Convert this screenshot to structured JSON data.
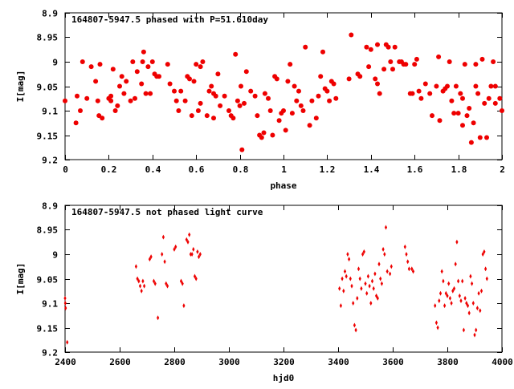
{
  "colors": {
    "points": "#ee0000",
    "axes": "#000000",
    "background": "#ffffff"
  },
  "chart_data": [
    {
      "type": "scatter",
      "title": "164807-5947.5 phased with P=51.610day",
      "xlabel": "phase",
      "ylabel": "I[mag]",
      "xlim": [
        0,
        2
      ],
      "ylim": [
        9.2,
        8.9
      ],
      "y_inverted": true,
      "grid": false,
      "marker": "filled-circle",
      "xticks": [
        0,
        0.2,
        0.4,
        0.6,
        0.8,
        1,
        1.2,
        1.4,
        1.6,
        1.8,
        2
      ],
      "xtick_labels": [
        "0",
        "0.2",
        "0.4",
        "0.6",
        "0.8",
        "1",
        "1.2",
        "1.4",
        "1.6",
        "1.8",
        "2"
      ],
      "yticks": [
        8.9,
        8.95,
        9,
        9.05,
        9.1,
        9.15,
        9.2
      ],
      "ytick_labels": [
        "8.9",
        "8.95",
        "9",
        "9.05",
        "9.1",
        "9.15",
        "9.2"
      ],
      "points": [
        [
          0.0,
          9.08
        ],
        [
          0.05,
          9.125
        ],
        [
          0.055,
          9.07
        ],
        [
          0.07,
          9.1
        ],
        [
          0.08,
          9.0
        ],
        [
          0.1,
          9.075
        ],
        [
          0.12,
          9.01
        ],
        [
          0.14,
          9.04
        ],
        [
          0.15,
          9.08
        ],
        [
          0.155,
          9.11
        ],
        [
          0.16,
          9.005
        ],
        [
          0.17,
          9.115
        ],
        [
          0.2,
          9.075
        ],
        [
          0.21,
          9.08
        ],
        [
          0.21,
          9.07
        ],
        [
          0.22,
          9.015
        ],
        [
          0.23,
          9.1
        ],
        [
          0.24,
          9.09
        ],
        [
          0.25,
          9.05
        ],
        [
          0.26,
          9.03
        ],
        [
          0.27,
          9.065
        ],
        [
          0.28,
          9.04
        ],
        [
          0.3,
          9.08
        ],
        [
          0.31,
          9.0
        ],
        [
          0.32,
          9.075
        ],
        [
          0.33,
          9.02
        ],
        [
          0.35,
          9.045
        ],
        [
          0.355,
          9.0
        ],
        [
          0.36,
          8.98
        ],
        [
          0.37,
          9.065
        ],
        [
          0.38,
          9.01
        ],
        [
          0.39,
          9.065
        ],
        [
          0.4,
          9.0
        ],
        [
          0.41,
          9.025
        ],
        [
          0.42,
          9.03
        ],
        [
          0.43,
          9.03
        ],
        [
          0.47,
          9.005
        ],
        [
          0.48,
          9.045
        ],
        [
          0.5,
          9.06
        ],
        [
          0.51,
          9.08
        ],
        [
          0.52,
          9.1
        ],
        [
          0.53,
          9.06
        ],
        [
          0.55,
          9.08
        ],
        [
          0.56,
          9.03
        ],
        [
          0.57,
          9.035
        ],
        [
          0.58,
          9.11
        ],
        [
          0.59,
          9.04
        ],
        [
          0.6,
          9.005
        ],
        [
          0.61,
          9.1
        ],
        [
          0.62,
          9.085
        ],
        [
          0.62,
          9.01
        ],
        [
          0.63,
          9.0
        ],
        [
          0.65,
          9.11
        ],
        [
          0.66,
          9.06
        ],
        [
          0.67,
          9.05
        ],
        [
          0.68,
          9.065
        ],
        [
          0.68,
          9.115
        ],
        [
          0.69,
          9.07
        ],
        [
          0.7,
          9.025
        ],
        [
          0.71,
          9.09
        ],
        [
          0.73,
          9.07
        ],
        [
          0.75,
          9.1
        ],
        [
          0.76,
          9.11
        ],
        [
          0.77,
          9.115
        ],
        [
          0.78,
          8.985
        ],
        [
          0.79,
          9.08
        ],
        [
          0.8,
          9.09
        ],
        [
          0.805,
          9.05
        ],
        [
          0.81,
          9.18
        ],
        [
          0.82,
          9.085
        ],
        [
          0.83,
          9.02
        ],
        [
          0.85,
          9.06
        ],
        [
          0.87,
          9.07
        ],
        [
          0.88,
          9.11
        ],
        [
          0.89,
          9.15
        ],
        [
          0.9,
          9.155
        ],
        [
          0.91,
          9.145
        ],
        [
          0.915,
          9.065
        ],
        [
          0.93,
          9.075
        ],
        [
          0.94,
          9.1
        ],
        [
          0.95,
          9.15
        ],
        [
          0.96,
          9.03
        ],
        [
          0.97,
          9.035
        ],
        [
          0.98,
          9.12
        ],
        [
          0.99,
          9.105
        ],
        [
          1.0,
          9.1
        ],
        [
          1.01,
          9.14
        ],
        [
          1.02,
          9.04
        ],
        [
          1.03,
          9.005
        ],
        [
          1.04,
          9.105
        ],
        [
          1.05,
          9.05
        ],
        [
          1.06,
          9.08
        ],
        [
          1.07,
          9.06
        ],
        [
          1.08,
          9.09
        ],
        [
          1.09,
          9.1
        ],
        [
          1.1,
          8.97
        ],
        [
          1.12,
          9.13
        ],
        [
          1.13,
          9.08
        ],
        [
          1.15,
          9.115
        ],
        [
          1.16,
          9.07
        ],
        [
          1.17,
          9.03
        ],
        [
          1.18,
          8.98
        ],
        [
          1.19,
          9.055
        ],
        [
          1.2,
          9.06
        ],
        [
          1.21,
          9.08
        ],
        [
          1.22,
          9.04
        ],
        [
          1.23,
          9.045
        ],
        [
          1.24,
          9.075
        ],
        [
          1.3,
          9.035
        ],
        [
          1.31,
          8.945
        ],
        [
          1.34,
          9.025
        ],
        [
          1.35,
          9.03
        ],
        [
          1.38,
          8.97
        ],
        [
          1.39,
          9.01
        ],
        [
          1.4,
          8.975
        ],
        [
          1.42,
          9.035
        ],
        [
          1.43,
          8.965
        ],
        [
          1.43,
          9.045
        ],
        [
          1.44,
          9.065
        ],
        [
          1.46,
          9.015
        ],
        [
          1.47,
          8.965
        ],
        [
          1.48,
          8.97
        ],
        [
          1.49,
          9.0
        ],
        [
          1.5,
          9.015
        ],
        [
          1.51,
          8.97
        ],
        [
          1.53,
          9.0
        ],
        [
          1.54,
          9.0
        ],
        [
          1.55,
          9.005
        ],
        [
          1.56,
          9.005
        ],
        [
          1.58,
          9.065
        ],
        [
          1.59,
          9.065
        ],
        [
          1.6,
          9.005
        ],
        [
          1.61,
          8.995
        ],
        [
          1.62,
          9.06
        ],
        [
          1.63,
          9.075
        ],
        [
          1.65,
          9.045
        ],
        [
          1.67,
          9.065
        ],
        [
          1.68,
          9.11
        ],
        [
          1.7,
          9.05
        ],
        [
          1.71,
          8.99
        ],
        [
          1.715,
          9.12
        ],
        [
          1.73,
          9.06
        ],
        [
          1.74,
          9.055
        ],
        [
          1.75,
          9.05
        ],
        [
          1.76,
          9.0
        ],
        [
          1.77,
          9.08
        ],
        [
          1.78,
          9.105
        ],
        [
          1.79,
          9.05
        ],
        [
          1.8,
          9.105
        ],
        [
          1.81,
          9.065
        ],
        [
          1.82,
          9.075
        ],
        [
          1.82,
          9.13
        ],
        [
          1.83,
          9.005
        ],
        [
          1.84,
          9.11
        ],
        [
          1.85,
          9.095
        ],
        [
          1.86,
          9.165
        ],
        [
          1.87,
          9.125
        ],
        [
          1.88,
          9.05
        ],
        [
          1.88,
          9.005
        ],
        [
          1.89,
          9.065
        ],
        [
          1.9,
          9.155
        ],
        [
          1.91,
          8.995
        ],
        [
          1.92,
          9.085
        ],
        [
          1.93,
          9.155
        ],
        [
          1.94,
          9.075
        ],
        [
          1.95,
          9.05
        ],
        [
          1.96,
          9.0
        ],
        [
          1.97,
          9.085
        ],
        [
          1.97,
          9.05
        ],
        [
          1.99,
          9.075
        ],
        [
          2.0,
          9.1
        ]
      ]
    },
    {
      "type": "scatter",
      "title": "164807-5947.5 not phased light curve",
      "xlabel": "hjd0",
      "ylabel": "I[mag]",
      "xlim": [
        2400,
        4000
      ],
      "ylim": [
        9.2,
        8.9
      ],
      "y_inverted": true,
      "grid": false,
      "marker": "small-diamond",
      "xticks": [
        2400,
        2600,
        2800,
        3000,
        3200,
        3400,
        3600,
        3800,
        4000
      ],
      "xtick_labels": [
        "2400",
        "2600",
        "2800",
        "3000",
        "3200",
        "3400",
        "3600",
        "3800",
        "4000"
      ],
      "yticks": [
        8.9,
        8.95,
        9,
        9.05,
        9.1,
        9.15,
        9.2
      ],
      "ytick_labels": [
        "8.9",
        "8.95",
        "9",
        "9.05",
        "9.1",
        "9.15",
        "9.2"
      ],
      "points": [
        [
          2400,
          9.09
        ],
        [
          2401,
          9.1
        ],
        [
          2402,
          9.11
        ],
        [
          2408,
          9.18
        ],
        [
          2660,
          9.025
        ],
        [
          2665,
          9.05
        ],
        [
          2670,
          9.055
        ],
        [
          2675,
          9.065
        ],
        [
          2680,
          9.075
        ],
        [
          2685,
          9.055
        ],
        [
          2690,
          9.065
        ],
        [
          2710,
          9.01
        ],
        [
          2715,
          9.005
        ],
        [
          2725,
          9.055
        ],
        [
          2730,
          9.06
        ],
        [
          2740,
          9.13
        ],
        [
          2755,
          9.0
        ],
        [
          2760,
          8.965
        ],
        [
          2765,
          9.015
        ],
        [
          2770,
          9.06
        ],
        [
          2775,
          9.065
        ],
        [
          2800,
          8.99
        ],
        [
          2805,
          8.985
        ],
        [
          2825,
          9.055
        ],
        [
          2830,
          9.06
        ],
        [
          2835,
          9.105
        ],
        [
          2845,
          8.97
        ],
        [
          2850,
          8.975
        ],
        [
          2855,
          8.96
        ],
        [
          2860,
          9.0
        ],
        [
          2865,
          9.0
        ],
        [
          2870,
          8.99
        ],
        [
          2875,
          9.045
        ],
        [
          2880,
          9.05
        ],
        [
          2885,
          8.995
        ],
        [
          2890,
          9.005
        ],
        [
          2895,
          9.0
        ],
        [
          3405,
          9.07
        ],
        [
          3410,
          9.105
        ],
        [
          3415,
          9.05
        ],
        [
          3420,
          9.075
        ],
        [
          3425,
          9.035
        ],
        [
          3430,
          9.045
        ],
        [
          3435,
          9.0
        ],
        [
          3440,
          9.01
        ],
        [
          3445,
          9.05
        ],
        [
          3450,
          9.065
        ],
        [
          3455,
          9.1
        ],
        [
          3460,
          9.145
        ],
        [
          3465,
          9.155
        ],
        [
          3470,
          9.09
        ],
        [
          3475,
          9.03
        ],
        [
          3480,
          9.05
        ],
        [
          3485,
          9.07
        ],
        [
          3490,
          9.0
        ],
        [
          3495,
          8.995
        ],
        [
          3500,
          9.06
        ],
        [
          3505,
          9.08
        ],
        [
          3510,
          9.045
        ],
        [
          3515,
          9.065
        ],
        [
          3520,
          9.1
        ],
        [
          3525,
          9.055
        ],
        [
          3530,
          9.07
        ],
        [
          3535,
          9.04
        ],
        [
          3540,
          9.085
        ],
        [
          3545,
          9.09
        ],
        [
          3550,
          9.02
        ],
        [
          3555,
          9.05
        ],
        [
          3560,
          9.06
        ],
        [
          3565,
          8.99
        ],
        [
          3570,
          9.0
        ],
        [
          3575,
          8.945
        ],
        [
          3580,
          9.035
        ],
        [
          3590,
          9.04
        ],
        [
          3595,
          9.025
        ],
        [
          3645,
          8.985
        ],
        [
          3650,
          9.0
        ],
        [
          3655,
          9.015
        ],
        [
          3660,
          9.03
        ],
        [
          3670,
          9.03
        ],
        [
          3675,
          9.035
        ],
        [
          3755,
          9.105
        ],
        [
          3760,
          9.14
        ],
        [
          3765,
          9.15
        ],
        [
          3770,
          9.095
        ],
        [
          3775,
          9.08
        ],
        [
          3780,
          9.035
        ],
        [
          3785,
          9.055
        ],
        [
          3790,
          9.105
        ],
        [
          3795,
          9.08
        ],
        [
          3800,
          9.085
        ],
        [
          3805,
          9.06
        ],
        [
          3810,
          9.09
        ],
        [
          3815,
          9.1
        ],
        [
          3820,
          9.075
        ],
        [
          3825,
          9.07
        ],
        [
          3830,
          9.02
        ],
        [
          3835,
          8.975
        ],
        [
          3840,
          9.055
        ],
        [
          3845,
          9.085
        ],
        [
          3850,
          9.095
        ],
        [
          3855,
          9.055
        ],
        [
          3860,
          9.155
        ],
        [
          3865,
          9.09
        ],
        [
          3870,
          9.1
        ],
        [
          3875,
          9.105
        ],
        [
          3880,
          9.12
        ],
        [
          3885,
          9.045
        ],
        [
          3890,
          9.06
        ],
        [
          3895,
          9.1
        ],
        [
          3900,
          9.165
        ],
        [
          3905,
          9.155
        ],
        [
          3910,
          9.11
        ],
        [
          3915,
          9.08
        ],
        [
          3920,
          9.115
        ],
        [
          3925,
          9.075
        ],
        [
          3930,
          9.0
        ],
        [
          3935,
          8.995
        ],
        [
          3940,
          9.03
        ],
        [
          3945,
          9.05
        ]
      ]
    }
  ]
}
